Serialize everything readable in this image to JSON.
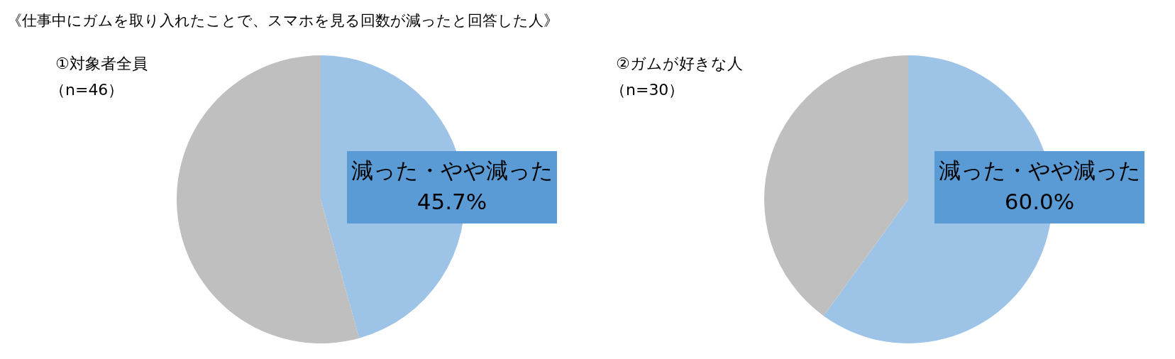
{
  "chart_data": [
    {
      "type": "pie",
      "title": "①対象者全員",
      "subtitle": "（n=46）",
      "annotations": [
        "《仕事中にガムを取り入れたことで、スマホを見る回数が減ったと回答した人》"
      ],
      "categories": [
        "減った・やや減った",
        null
      ],
      "values": [
        45.7,
        54.3
      ],
      "colors": [
        "#9dc3e6",
        "#bfbfbf"
      ],
      "value_labels": [
        "45.7%",
        null
      ]
    },
    {
      "type": "pie",
      "title": "②ガムが好きな人",
      "subtitle": "（n=30）",
      "categories": [
        "減った・やや減った",
        null
      ],
      "values": [
        60.0,
        40.0
      ],
      "colors": [
        "#9dc3e6",
        "#bfbfbf"
      ],
      "value_labels": [
        "60.0%",
        null
      ]
    }
  ]
}
